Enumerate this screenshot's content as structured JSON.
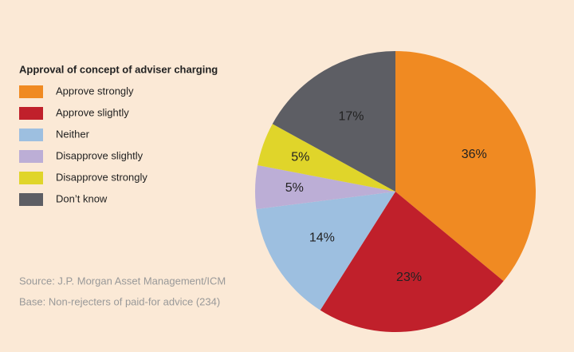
{
  "chart_data": {
    "type": "pie",
    "legend_title": "Approval of concept of adviser charging",
    "categories": [
      "Approve strongly",
      "Approve slightly",
      "Neither",
      "Disapprove slightly",
      "Disapprove strongly",
      "Don’t know"
    ],
    "values": [
      36,
      23,
      14,
      5,
      5,
      17
    ],
    "value_labels": [
      "36%",
      "23%",
      "14%",
      "5%",
      "5%",
      "17%"
    ],
    "colors": [
      "#f08a22",
      "#c0202b",
      "#9dbfe0",
      "#bcaed6",
      "#e0d52a",
      "#5d5e64"
    ],
    "legend": "left",
    "source": "Source: J.P. Morgan Asset Management/ICM",
    "base": "Base: Non-rejecters of paid-for advice (234)"
  }
}
